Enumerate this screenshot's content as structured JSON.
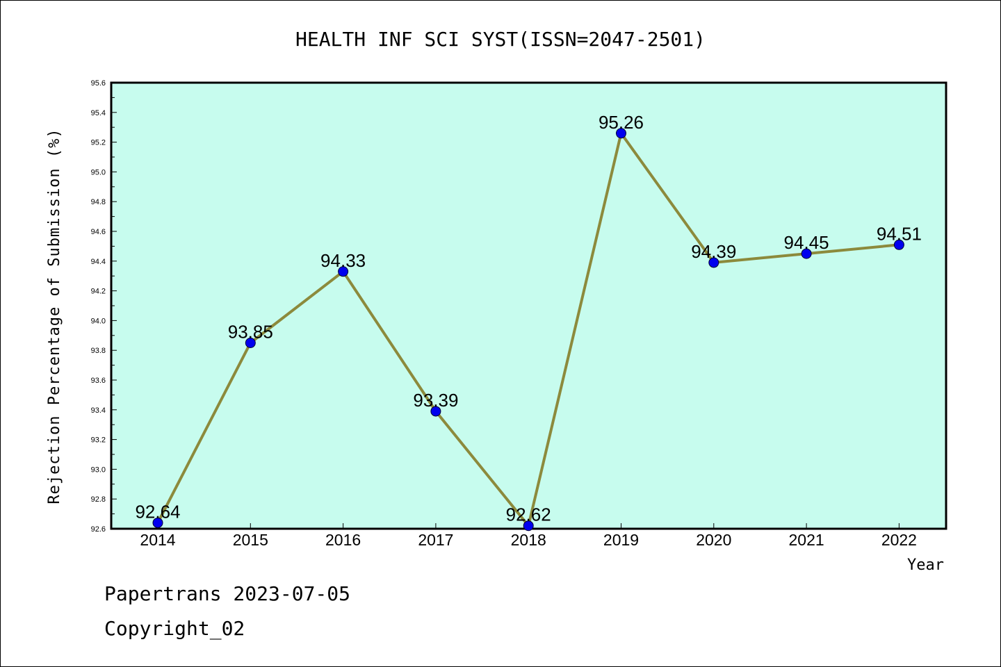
{
  "chart_data": {
    "type": "line",
    "title": "HEALTH INF SCI SYST(ISSN=2047-2501)",
    "xlabel": "Year",
    "ylabel": "Rejection Percentage of Submission (%)",
    "x": [
      "2014",
      "2015",
      "2016",
      "2017",
      "2018",
      "2019",
      "2020",
      "2021",
      "2022"
    ],
    "values": [
      92.64,
      93.85,
      94.33,
      93.39,
      92.62,
      95.26,
      94.39,
      94.45,
      94.51
    ],
    "data_labels": [
      "92.64",
      "93.85",
      "94.33",
      "93.39",
      "92.62",
      "95.26",
      "94.39",
      "94.45",
      "94.51"
    ],
    "ylim": [
      92.6,
      95.6
    ],
    "yticks": [
      "92.6",
      "92.8",
      "93.0",
      "93.2",
      "93.4",
      "93.6",
      "93.8",
      "94.0",
      "94.2",
      "94.4",
      "94.6",
      "94.8",
      "95.0",
      "95.2",
      "95.4",
      "95.6"
    ],
    "grid": false,
    "colors": {
      "plot_background": "#c7fcee",
      "line": "#8c8a3c",
      "marker": "#0000ee"
    }
  },
  "footer": {
    "line1": "Papertrans 2023-07-05",
    "line2": "Copyright_02"
  }
}
